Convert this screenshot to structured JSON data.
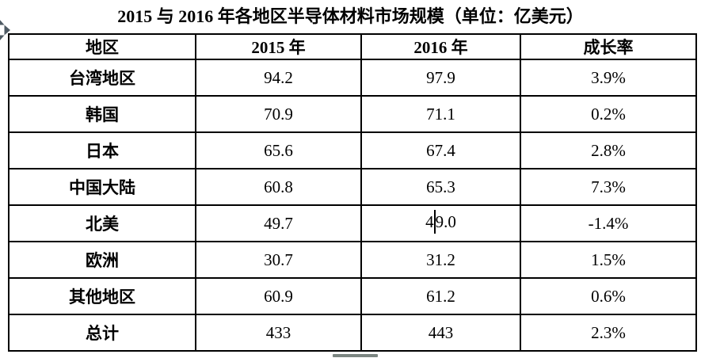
{
  "title": "2015 与 2016 年各地区半导体材料市场规模（单位：亿美元）",
  "table": {
    "headers": [
      "地区",
      "2015 年",
      "2016 年",
      "成长率"
    ],
    "columns": [
      "region",
      "y2015",
      "y2016",
      "growth"
    ],
    "rows": [
      {
        "region": "台湾地区",
        "y2015": "94.2",
        "y2016": "97.9",
        "growth": "3.9%"
      },
      {
        "region": "韩国",
        "y2015": "70.9",
        "y2016": "71.1",
        "growth": "0.2%"
      },
      {
        "region": "日本",
        "y2015": "65.6",
        "y2016": "67.4",
        "growth": "2.8%"
      },
      {
        "region": "中国大陆",
        "y2015": "60.8",
        "y2016": "65.3",
        "growth": "7.3%"
      },
      {
        "region": "北美",
        "y2015": "49.7",
        "y2016": "49.0",
        "growth": "-1.4%"
      },
      {
        "region": "欧洲",
        "y2015": "30.7",
        "y2016": "31.2",
        "growth": "1.5%"
      },
      {
        "region": "其他地区",
        "y2015": "60.9",
        "y2016": "61.2",
        "growth": "0.6%"
      },
      {
        "region": "总计",
        "y2015": "433",
        "y2016": "443",
        "growth": "2.3%"
      }
    ],
    "caret": {
      "row_index": 4,
      "column": "y2016",
      "char_offset": 1
    }
  },
  "icons": {
    "table_move_handle": "move-cross-arrows-icon",
    "bottom_handle": "gray-horizontal-bar"
  },
  "colors": {
    "text": "#000000",
    "border": "#000000",
    "background": "#ffffff",
    "move_handle": "#4e5a63",
    "bottom_bar": "#7b8581"
  }
}
